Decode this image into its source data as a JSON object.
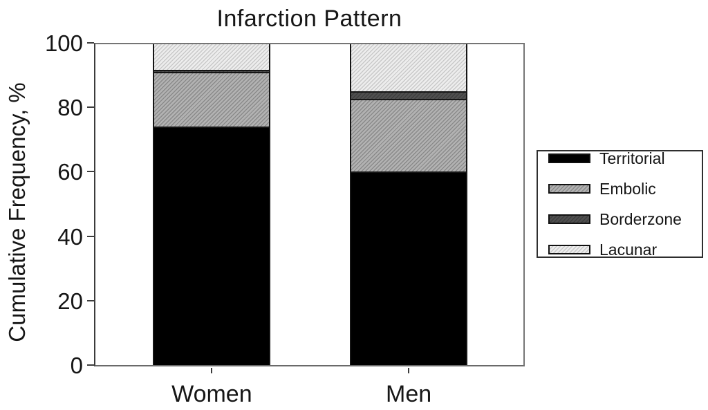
{
  "title": "Infarction Pattern",
  "axes": {
    "y_label": "Cumulative Frequency, %",
    "y_ticks": [
      0,
      20,
      40,
      60,
      80,
      100
    ],
    "x_categories": [
      "Women",
      "Men"
    ]
  },
  "chart_data": {
    "type": "bar",
    "stacked": true,
    "title": "Infarction Pattern",
    "xlabel": "",
    "ylabel": "Cumulative Frequency, %",
    "ylim": [
      0,
      100
    ],
    "yticks": [
      0,
      20,
      40,
      60,
      80,
      100
    ],
    "grid": false,
    "categories": [
      "Women",
      "Men"
    ],
    "series": [
      {
        "name": "Territorial",
        "values": [
          74,
          60
        ],
        "fill": {
          "style": "solid",
          "bg": "#000000",
          "line": "#000000"
        }
      },
      {
        "name": "Embolic",
        "values": [
          17,
          22.5
        ],
        "fill": {
          "style": "hatch",
          "bg": "#b2b2b2",
          "line": "#8a8a8a"
        }
      },
      {
        "name": "Borderzone",
        "values": [
          0.5,
          2.5
        ],
        "fill": {
          "style": "hatch",
          "bg": "#4f4f4f",
          "line": "#3e3e3e"
        }
      },
      {
        "name": "Lacunar",
        "values": [
          8.5,
          15
        ],
        "fill": {
          "style": "hatch",
          "bg": "#ededed",
          "line": "#c9c9c9"
        }
      }
    ],
    "legend": {
      "position": "right",
      "entries": [
        "Territorial",
        "Embolic",
        "Borderzone",
        "Lacunar"
      ]
    }
  },
  "colors": {
    "frame": "#6a6a6a",
    "axis": "#3c3c3c",
    "segment_border": "#151515",
    "text": "#161616",
    "background": "#ffffff"
  }
}
